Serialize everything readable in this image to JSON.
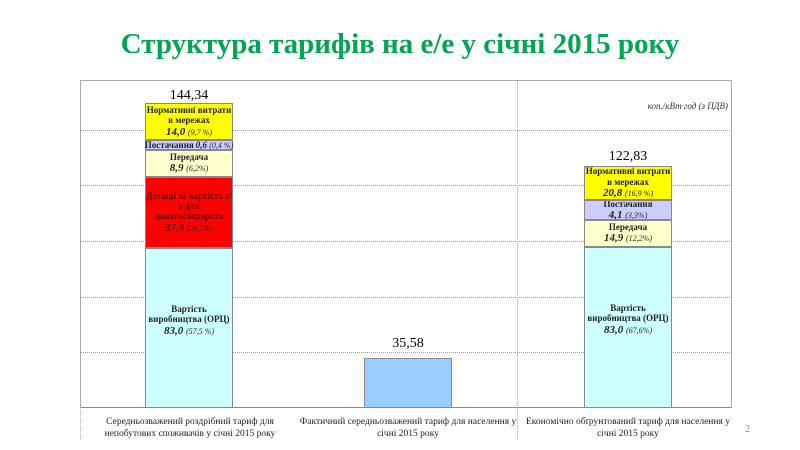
{
  "title": "Структура тарифів на е/е у січні 2015 року",
  "page_number": "2",
  "chart_data": {
    "type": "bar",
    "stacked": true,
    "unit_label": "коп./кВт·год (з ПДВ)",
    "categories": [
      "Середньозважений роздрібний тариф для непобутових споживачів у січні 2015 року",
      "Фактичний середньозважений тариф для населення у січні 2015 року",
      "Економічно обґрунтований тариф для населення у січні 2015 року"
    ],
    "totals": [
      "144,34",
      "35,58",
      "122,83"
    ],
    "grid": true,
    "stacks": [
      [
        {
          "name": "Вартість виробництва (ОРЦ)",
          "value": "83,0",
          "share": "(57,5 %)",
          "color": "#ccffff"
        },
        {
          "name": "Дотації за вартість е/е для домогосподарств",
          "value": "37,9",
          "share": "(26,3%)",
          "color": "#ff0000"
        },
        {
          "name": "Передача",
          "value": "8,9",
          "share": "(6,2%)",
          "color": "#ffffcc"
        },
        {
          "name": "Постачання",
          "value": "0,6",
          "share": "(0,4 %)",
          "color": "#ccccff"
        },
        {
          "name": "Нормативні витрати в мережах",
          "value": "14,0",
          "share": "(9,7 %)",
          "color": "#ffff00"
        }
      ],
      [
        {
          "name": "",
          "value": "35,58",
          "share": "",
          "color": "#99ccff"
        }
      ],
      [
        {
          "name": "Вартість виробництва (ОРЦ)",
          "value": "83,0",
          "share": "(67,6%)",
          "color": "#ccffff"
        },
        {
          "name": "Передача",
          "value": "14,9",
          "share": "(12,2%)",
          "color": "#ffffcc"
        },
        {
          "name": "Постачання",
          "value": "4,1",
          "share": "(3,3%)",
          "color": "#ccccff"
        },
        {
          "name": "Нормативні витрати в мережах",
          "value": "20,8",
          "share": "(16,9 %)",
          "color": "#ffff00"
        }
      ]
    ]
  }
}
